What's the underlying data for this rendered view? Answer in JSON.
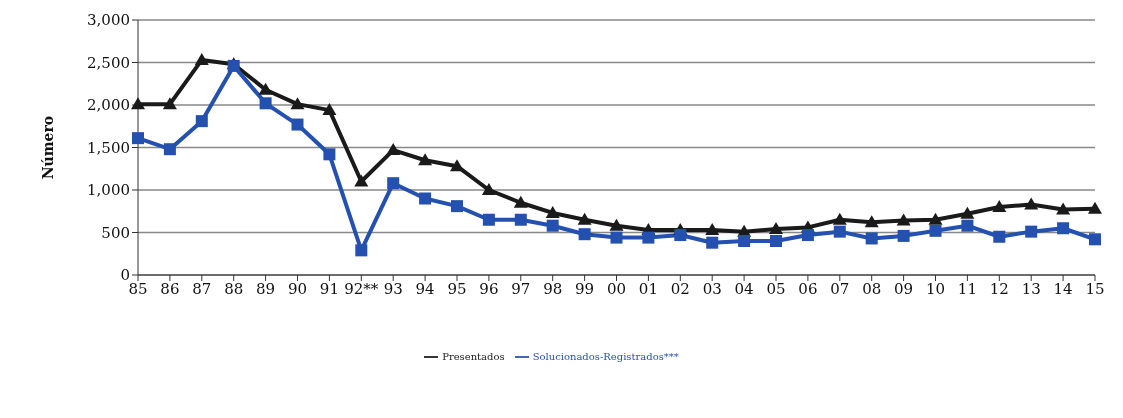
{
  "chart_data": {
    "type": "line",
    "ylabel": "Número",
    "categories": [
      "85",
      "86",
      "87",
      "88",
      "89",
      "90",
      "91",
      "92**",
      "93",
      "94",
      "95",
      "96",
      "97",
      "98",
      "99",
      "00",
      "01",
      "02",
      "03",
      "04",
      "05",
      "06",
      "07",
      "08",
      "09",
      "10",
      "11",
      "12",
      "13",
      "14",
      "15"
    ],
    "series": [
      {
        "name": "Presentados",
        "color": "#1a1a1a",
        "marker": "triangle",
        "values": [
          2010,
          2010,
          2530,
          2480,
          2180,
          2010,
          1940,
          1100,
          1470,
          1350,
          1280,
          1000,
          850,
          730,
          650,
          580,
          530,
          530,
          530,
          510,
          540,
          560,
          650,
          620,
          640,
          650,
          720,
          800,
          830,
          770,
          780
        ]
      },
      {
        "name": "Solucionados-Registrados***",
        "color": "#2450b0",
        "marker": "square",
        "values": [
          1610,
          1480,
          1810,
          2460,
          2020,
          1770,
          1420,
          290,
          1080,
          900,
          810,
          650,
          650,
          580,
          480,
          440,
          440,
          470,
          380,
          400,
          400,
          470,
          510,
          430,
          460,
          520,
          580,
          450,
          510,
          550,
          420
        ]
      }
    ],
    "ylim": [
      0,
      3000
    ],
    "yticks": [
      0,
      500,
      {
        "value": 1000,
        "label": "1,000"
      },
      {
        "value": 1500,
        "label": "1,500"
      },
      {
        "value": 2000,
        "label": "2,000"
      },
      {
        "value": 2500,
        "label": "2,500"
      },
      {
        "value": 3000,
        "label": "3,000"
      }
    ],
    "grid": "y",
    "legend": "bottom",
    "line_style": "solid"
  }
}
